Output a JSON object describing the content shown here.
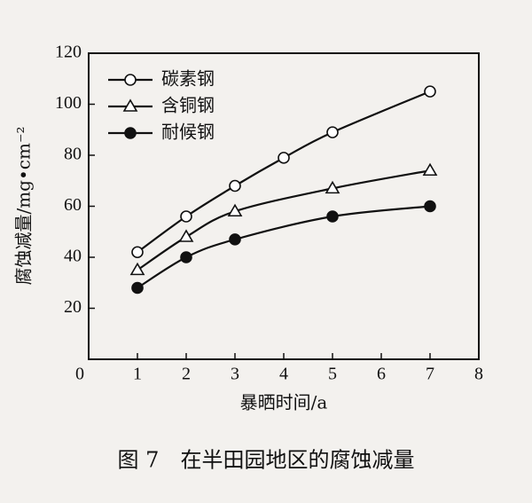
{
  "chart_data": {
    "type": "line",
    "caption": "图 7　在半田园地区的腐蚀减量",
    "xlabel": "暴晒时间/a",
    "ylabel": "腐蚀减量/mg•cm⁻²",
    "xlim": [
      0,
      8
    ],
    "xticks": [
      0,
      1,
      2,
      3,
      4,
      5,
      6,
      7,
      8
    ],
    "ylim": [
      0,
      120
    ],
    "yticks": [
      20,
      40,
      60,
      80,
      100,
      120
    ],
    "legend": "upper-left",
    "series": [
      {
        "name": "碳素钢",
        "color": "#111111",
        "marker": "open-circle",
        "x": [
          1,
          2,
          3,
          4,
          5,
          7
        ],
        "values": [
          42,
          56,
          68,
          79,
          89,
          105
        ]
      },
      {
        "name": "含铜钢",
        "color": "#111111",
        "marker": "open-triangle",
        "x": [
          1,
          2,
          3,
          5,
          7
        ],
        "values": [
          35,
          48,
          58,
          67,
          74
        ]
      },
      {
        "name": "耐候钢",
        "color": "#111111",
        "marker": "filled-circle",
        "x": [
          1,
          2,
          3,
          5,
          7
        ],
        "values": [
          28,
          40,
          47,
          56,
          60
        ]
      }
    ]
  }
}
